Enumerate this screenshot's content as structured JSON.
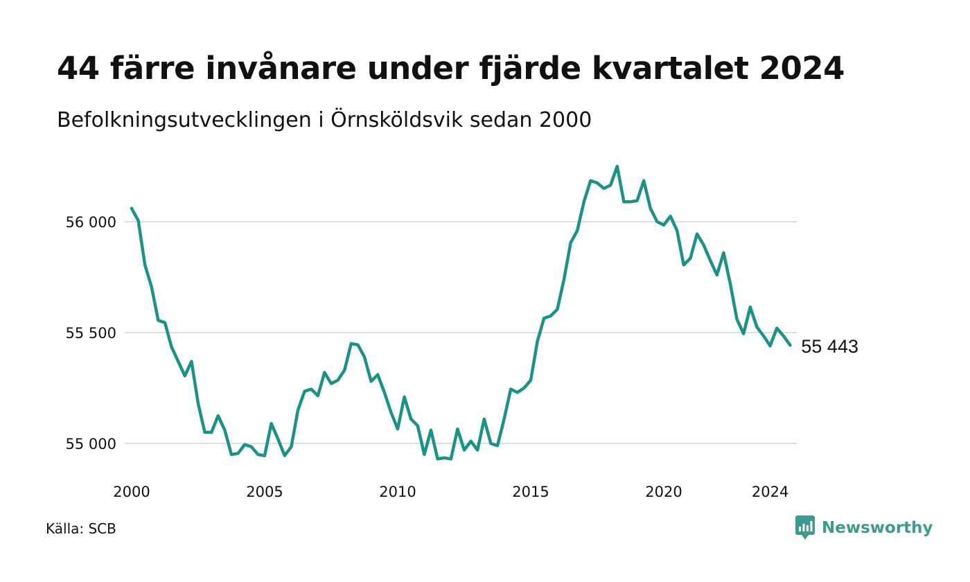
{
  "header": {
    "title": "44 färre invånare under fjärde kvartalet 2024",
    "subtitle": "Befolkningsutvecklingen i Örnsköldsvik sedan 2000"
  },
  "footer": {
    "source": "Källa: SCB",
    "brand": "Newsworthy",
    "brand_icon": "chart-bubble-icon",
    "brand_color": "#3d9a8d"
  },
  "chart_data": {
    "type": "line",
    "title": "44 färre invånare under fjärde kvartalet 2024",
    "subtitle": "Befolkningsutvecklingen i Örnsköldsvik sedan 2000",
    "xlabel": "",
    "ylabel": "",
    "xlim": [
      2000.0,
      2025.0
    ],
    "ylim": [
      54900,
      56300
    ],
    "y_ticks": [
      55000,
      55500,
      56000
    ],
    "y_tick_labels": [
      "55 000",
      "55 500",
      "56 000"
    ],
    "x_ticks": [
      2000,
      2005,
      2010,
      2015,
      2020,
      2024
    ],
    "x_tick_labels": [
      "2000",
      "2005",
      "2010",
      "2015",
      "2020",
      "2024"
    ],
    "grid": "horizontal",
    "color": "#1a9285",
    "end_label": "55 443",
    "series": [
      {
        "x": [
          2000.0,
          2000.25,
          2000.5,
          2000.75,
          2001.0,
          2001.25,
          2001.5,
          2001.75,
          2002.0,
          2002.25,
          2002.5,
          2002.75,
          2003.0,
          2003.25,
          2003.5,
          2003.75,
          2004.0,
          2004.25,
          2004.5,
          2004.75,
          2005.0,
          2005.25,
          2005.5,
          2005.75,
          2006.0,
          2006.25,
          2006.5,
          2006.75,
          2007.0,
          2007.25,
          2007.5,
          2007.75,
          2008.0,
          2008.25,
          2008.5,
          2008.75,
          2009.0,
          2009.25,
          2009.5,
          2009.75,
          2010.0,
          2010.25,
          2010.5,
          2010.75,
          2011.0,
          2011.25,
          2011.5,
          2011.75,
          2012.0,
          2012.25,
          2012.5,
          2012.75,
          2013.0,
          2013.25,
          2013.5,
          2013.75,
          2014.0,
          2014.25,
          2014.5,
          2014.75,
          2015.0,
          2015.25,
          2015.5,
          2015.75,
          2016.0,
          2016.25,
          2016.5,
          2016.75,
          2017.0,
          2017.25,
          2017.5,
          2017.75,
          2018.0,
          2018.25,
          2018.5,
          2018.75,
          2019.0,
          2019.25,
          2019.5,
          2019.75,
          2020.0,
          2020.25,
          2020.5,
          2020.75,
          2021.0,
          2021.25,
          2021.5,
          2021.75,
          2022.0,
          2022.25,
          2022.5,
          2022.75,
          2023.0,
          2023.25,
          2023.5,
          2023.75,
          2024.0,
          2024.25,
          2024.5,
          2024.75
        ],
        "values": [
          56060,
          56005,
          55805,
          55705,
          55555,
          55545,
          55435,
          55370,
          55305,
          55370,
          55180,
          55050,
          55050,
          55125,
          55060,
          54950,
          54955,
          54995,
          54985,
          54950,
          54945,
          55090,
          55020,
          54945,
          54985,
          55150,
          55235,
          55245,
          55215,
          55320,
          55270,
          55285,
          55330,
          55450,
          55445,
          55390,
          55280,
          55310,
          55230,
          55140,
          55065,
          55210,
          55110,
          55080,
          54950,
          55060,
          54930,
          54935,
          54930,
          55065,
          54970,
          55010,
          54970,
          55110,
          55000,
          54990,
          55110,
          55245,
          55230,
          55250,
          55285,
          55460,
          55565,
          55575,
          55605,
          55740,
          55905,
          55960,
          56090,
          56185,
          56175,
          56150,
          56165,
          56250,
          56090,
          56090,
          56095,
          56185,
          56060,
          56000,
          55985,
          56025,
          55960,
          55805,
          55835,
          55945,
          55895,
          55825,
          55760,
          55860,
          55720,
          55560,
          55495,
          55615,
          55525,
          55485,
          55440,
          55520,
          55485,
          55443
        ]
      }
    ]
  }
}
